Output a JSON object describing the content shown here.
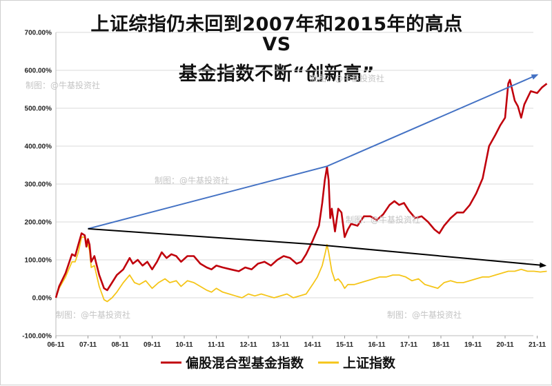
{
  "title_lines": [
    "上证综指仍未回到2007年和2015年的高点",
    "VS",
    "基金指数不断“创新高”"
  ],
  "watermark": "制图：@牛基投资社",
  "colors": {
    "fund": "#c0000c",
    "index": "#f5c518",
    "up_arrow": "#4472c4",
    "down_arrow": "#000000",
    "grid": "#d9d9d9"
  },
  "chart_data": {
    "type": "line",
    "title": "上证综指仍未回到2007年和2015年的高点 VS 基金指数不断“创新高”",
    "xlabel": "",
    "ylabel": "",
    "x_ticks": [
      "06-11",
      "07-11",
      "08-11",
      "09-11",
      "10-11",
      "11-11",
      "12-11",
      "13-11",
      "14-11",
      "15-11",
      "16-11",
      "17-11",
      "18-11",
      "19-11",
      "20-11",
      "21-11"
    ],
    "y_ticks": [
      "-100.00%",
      "0.00%",
      "100.00%",
      "200.00%",
      "300.00%",
      "400.00%",
      "500.00%",
      "600.00%",
      "700.00%"
    ],
    "ylim": [
      -100,
      700
    ],
    "grid": true,
    "legend": "bottom",
    "x_unit": "years since 06-11",
    "series": [
      {
        "name": "偏股混合型基金指数",
        "color": "#c0000c",
        "points": [
          [
            0,
            0
          ],
          [
            0.1,
            30
          ],
          [
            0.3,
            65
          ],
          [
            0.5,
            115
          ],
          [
            0.6,
            110
          ],
          [
            0.7,
            140
          ],
          [
            0.8,
            170
          ],
          [
            0.9,
            165
          ],
          [
            0.95,
            135
          ],
          [
            1.0,
            155
          ],
          [
            1.05,
            140
          ],
          [
            1.1,
            95
          ],
          [
            1.2,
            110
          ],
          [
            1.35,
            60
          ],
          [
            1.5,
            25
          ],
          [
            1.6,
            20
          ],
          [
            1.75,
            40
          ],
          [
            1.9,
            60
          ],
          [
            2.1,
            75
          ],
          [
            2.3,
            105
          ],
          [
            2.4,
            90
          ],
          [
            2.55,
            100
          ],
          [
            2.7,
            85
          ],
          [
            2.85,
            95
          ],
          [
            3.0,
            75
          ],
          [
            3.15,
            95
          ],
          [
            3.3,
            120
          ],
          [
            3.45,
            105
          ],
          [
            3.6,
            115
          ],
          [
            3.75,
            110
          ],
          [
            3.9,
            95
          ],
          [
            4.1,
            110
          ],
          [
            4.3,
            110
          ],
          [
            4.5,
            90
          ],
          [
            4.7,
            80
          ],
          [
            4.85,
            75
          ],
          [
            5.0,
            85
          ],
          [
            5.2,
            80
          ],
          [
            5.45,
            75
          ],
          [
            5.7,
            70
          ],
          [
            5.9,
            80
          ],
          [
            6.1,
            75
          ],
          [
            6.3,
            90
          ],
          [
            6.5,
            95
          ],
          [
            6.7,
            85
          ],
          [
            6.9,
            100
          ],
          [
            7.1,
            110
          ],
          [
            7.3,
            105
          ],
          [
            7.5,
            90
          ],
          [
            7.65,
            95
          ],
          [
            7.8,
            115
          ],
          [
            8.0,
            150
          ],
          [
            8.2,
            190
          ],
          [
            8.3,
            250
          ],
          [
            8.38,
            310
          ],
          [
            8.45,
            345
          ],
          [
            8.5,
            310
          ],
          [
            8.55,
            210
          ],
          [
            8.6,
            235
          ],
          [
            8.7,
            175
          ],
          [
            8.8,
            235
          ],
          [
            8.9,
            225
          ],
          [
            9.0,
            160
          ],
          [
            9.1,
            180
          ],
          [
            9.2,
            195
          ],
          [
            9.4,
            190
          ],
          [
            9.6,
            215
          ],
          [
            9.8,
            215
          ],
          [
            10.0,
            205
          ],
          [
            10.2,
            220
          ],
          [
            10.4,
            245
          ],
          [
            10.55,
            255
          ],
          [
            10.7,
            245
          ],
          [
            10.85,
            250
          ],
          [
            11.0,
            230
          ],
          [
            11.2,
            210
          ],
          [
            11.4,
            215
          ],
          [
            11.6,
            200
          ],
          [
            11.8,
            180
          ],
          [
            11.95,
            170
          ],
          [
            12.1,
            190
          ],
          [
            12.3,
            210
          ],
          [
            12.5,
            225
          ],
          [
            12.7,
            225
          ],
          [
            12.9,
            245
          ],
          [
            13.1,
            275
          ],
          [
            13.3,
            315
          ],
          [
            13.5,
            400
          ],
          [
            13.7,
            430
          ],
          [
            13.85,
            455
          ],
          [
            14.0,
            475
          ],
          [
            14.1,
            565
          ],
          [
            14.15,
            575
          ],
          [
            14.3,
            520
          ],
          [
            14.4,
            505
          ],
          [
            14.5,
            475
          ],
          [
            14.6,
            510
          ],
          [
            14.8,
            545
          ],
          [
            15.0,
            540
          ],
          [
            15.15,
            555
          ],
          [
            15.3,
            565
          ]
        ]
      },
      {
        "name": "上证指数",
        "color": "#f5c518",
        "points": [
          [
            0,
            0
          ],
          [
            0.1,
            25
          ],
          [
            0.3,
            55
          ],
          [
            0.5,
            95
          ],
          [
            0.6,
            95
          ],
          [
            0.7,
            120
          ],
          [
            0.8,
            160
          ],
          [
            0.9,
            160
          ],
          [
            0.95,
            150
          ],
          [
            1.0,
            140
          ],
          [
            1.05,
            125
          ],
          [
            1.1,
            80
          ],
          [
            1.2,
            85
          ],
          [
            1.35,
            30
          ],
          [
            1.5,
            -5
          ],
          [
            1.6,
            -10
          ],
          [
            1.75,
            0
          ],
          [
            1.9,
            15
          ],
          [
            2.1,
            40
          ],
          [
            2.3,
            60
          ],
          [
            2.45,
            40
          ],
          [
            2.6,
            35
          ],
          [
            2.8,
            45
          ],
          [
            3.0,
            25
          ],
          [
            3.2,
            40
          ],
          [
            3.4,
            50
          ],
          [
            3.55,
            40
          ],
          [
            3.75,
            45
          ],
          [
            3.9,
            30
          ],
          [
            4.1,
            45
          ],
          [
            4.3,
            40
          ],
          [
            4.5,
            30
          ],
          [
            4.7,
            20
          ],
          [
            4.85,
            15
          ],
          [
            5.0,
            25
          ],
          [
            5.2,
            15
          ],
          [
            5.4,
            10
          ],
          [
            5.6,
            5
          ],
          [
            5.8,
            0
          ],
          [
            6.0,
            10
          ],
          [
            6.2,
            5
          ],
          [
            6.4,
            10
          ],
          [
            6.6,
            5
          ],
          [
            6.8,
            0
          ],
          [
            7.0,
            5
          ],
          [
            7.2,
            10
          ],
          [
            7.4,
            0
          ],
          [
            7.6,
            5
          ],
          [
            7.8,
            10
          ],
          [
            8.0,
            35
          ],
          [
            8.15,
            55
          ],
          [
            8.3,
            85
          ],
          [
            8.4,
            120
          ],
          [
            8.45,
            140
          ],
          [
            8.5,
            120
          ],
          [
            8.6,
            70
          ],
          [
            8.7,
            45
          ],
          [
            8.8,
            50
          ],
          [
            8.9,
            40
          ],
          [
            9.0,
            25
          ],
          [
            9.1,
            35
          ],
          [
            9.3,
            35
          ],
          [
            9.5,
            40
          ],
          [
            9.7,
            45
          ],
          [
            9.9,
            50
          ],
          [
            10.1,
            55
          ],
          [
            10.3,
            55
          ],
          [
            10.5,
            60
          ],
          [
            10.7,
            60
          ],
          [
            10.9,
            55
          ],
          [
            11.1,
            45
          ],
          [
            11.3,
            50
          ],
          [
            11.5,
            35
          ],
          [
            11.7,
            30
          ],
          [
            11.9,
            25
          ],
          [
            12.1,
            40
          ],
          [
            12.3,
            45
          ],
          [
            12.5,
            40
          ],
          [
            12.7,
            40
          ],
          [
            12.9,
            45
          ],
          [
            13.1,
            50
          ],
          [
            13.3,
            55
          ],
          [
            13.5,
            55
          ],
          [
            13.7,
            60
          ],
          [
            13.9,
            65
          ],
          [
            14.1,
            70
          ],
          [
            14.3,
            70
          ],
          [
            14.5,
            75
          ],
          [
            14.7,
            70
          ],
          [
            14.9,
            70
          ],
          [
            15.1,
            68
          ],
          [
            15.3,
            70
          ]
        ]
      }
    ],
    "annotations": [
      {
        "name": "fund-trend-arrow",
        "color": "#4472c4",
        "from": [
          1.0,
          182
        ],
        "via": [
          8.45,
          347
        ],
        "to": [
          15.0,
          588
        ]
      },
      {
        "name": "index-trend-arrow",
        "color": "#000000",
        "from": [
          1.0,
          182
        ],
        "via": [
          8.0,
          141
        ],
        "to": [
          15.25,
          85
        ]
      }
    ]
  }
}
